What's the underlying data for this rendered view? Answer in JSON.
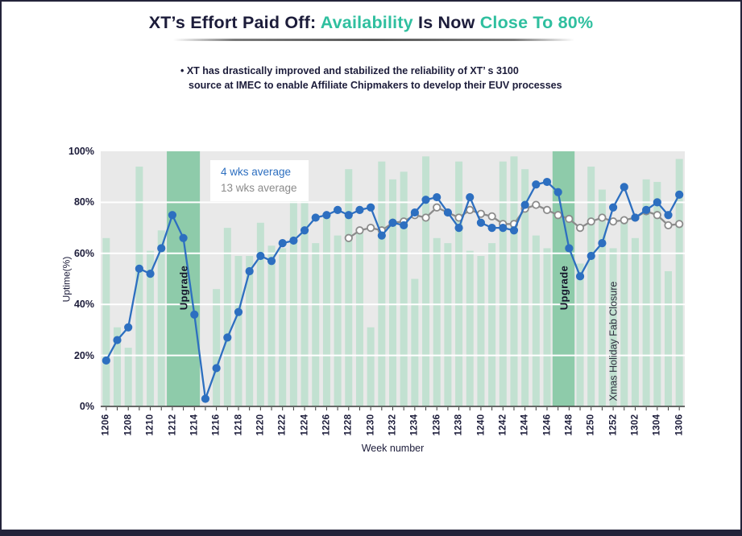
{
  "header": {
    "title_parts": [
      {
        "text": "XT’s Effort Paid Off:",
        "color": "#1c1c3a"
      },
      {
        "text": " Availability",
        "color": "#2fbf9f"
      },
      {
        "text": " Is Now ",
        "color": "#1c1c3a"
      },
      {
        "text": "Close To 80%",
        "color": "#2fbf9f"
      }
    ],
    "bullet_lines": [
      "• XT has drastically improved and stabilized the reliability of XT’ s 3100",
      "source at IMEC to enable Affiliate Chipmakers to develop their EUV processes"
    ]
  },
  "colors": {
    "bar": "#c2e1d1",
    "band": "#8ecbaa",
    "line_4wk": "#2d6fc0",
    "line_13wk": "#8b8b8b",
    "plot_bg": "#e9e9e9",
    "grid": "#ffffff",
    "axis": "#3a3a3a",
    "accent_teal": "#2fbf9f",
    "dark_text": "#1c1c3a"
  },
  "chart_data": {
    "type": "bar+line",
    "xlabel": "Week number",
    "ylabel": "Uptime(%)",
    "ylim": [
      0,
      100
    ],
    "yticks": [
      "0%",
      "20%",
      "40%",
      "60%",
      "80%",
      "100%"
    ],
    "grid": "horizontal white lines at 20/40/60/80, drawn over bars",
    "legend_position": "top-left inside plot",
    "legend": [
      "4 wks average",
      "13 wks average"
    ],
    "categories": [
      "1206",
      "1207",
      "1208",
      "1209",
      "1210",
      "1211",
      "1212",
      "1213",
      "1214",
      "1215",
      "1216",
      "1217",
      "1218",
      "1219",
      "1220",
      "1221",
      "1222",
      "1223",
      "1224",
      "1225",
      "1226",
      "1227",
      "1228",
      "1229",
      "1230",
      "1231",
      "1232",
      "1233",
      "1234",
      "1235",
      "1236",
      "1237",
      "1238",
      "1239",
      "1240",
      "1241",
      "1242",
      "1243",
      "1244",
      "1245",
      "1246",
      "1247",
      "1248",
      "1249",
      "1250",
      "1251",
      "1252",
      "1301",
      "1302",
      "1303",
      "1304",
      "1305",
      "1306"
    ],
    "x_labeled_every": 2,
    "series": [
      {
        "name": "Weekly uptime",
        "type": "bar",
        "color_key": "bar",
        "values": [
          66,
          31,
          23,
          94,
          61,
          69,
          null,
          null,
          null,
          null,
          46,
          70,
          59,
          59,
          72,
          63,
          62,
          85,
          86,
          64,
          75,
          67,
          93,
          68,
          31,
          96,
          89,
          92,
          50,
          98,
          66,
          64,
          96,
          61,
          59,
          64,
          96,
          98,
          93,
          67,
          62,
          null,
          null,
          56,
          94,
          85,
          62,
          74,
          66,
          89,
          88,
          53,
          97
        ]
      },
      {
        "name": "4 wks average",
        "type": "line",
        "color_key": "line_4wk",
        "values": [
          18,
          26,
          31,
          54,
          52,
          62,
          75,
          66,
          36,
          3,
          15,
          27,
          37,
          53,
          59,
          57,
          64,
          65,
          69,
          74,
          75,
          77,
          75,
          77,
          78,
          67,
          72,
          71,
          76,
          81,
          82,
          76,
          70,
          82,
          72,
          70,
          70,
          69,
          79,
          87,
          88,
          84,
          62,
          51,
          59,
          64,
          78,
          86,
          74,
          77,
          80,
          75,
          83
        ]
      },
      {
        "name": "13 wks average",
        "type": "line",
        "color_key": "line_13wk",
        "values": [
          null,
          null,
          null,
          null,
          null,
          null,
          null,
          null,
          null,
          null,
          null,
          null,
          null,
          null,
          null,
          null,
          null,
          null,
          null,
          null,
          null,
          null,
          66,
          69,
          70,
          69,
          72,
          72.5,
          75,
          74,
          78,
          76,
          74,
          77,
          75.5,
          74.5,
          71.5,
          71.5,
          77.5,
          79,
          77,
          75,
          73.5,
          70,
          72.5,
          74,
          72.5,
          73,
          74,
          76.5,
          75,
          71,
          71.5
        ]
      }
    ],
    "bands": [
      {
        "label": "Upgrade",
        "from_week": "1212",
        "to_week": "1214"
      },
      {
        "label": "Upgrade",
        "from_week": "1247",
        "to_week": "1248"
      }
    ],
    "annotations": [
      {
        "label": "Xmas Holiday Fab Closure",
        "week": "1252"
      }
    ]
  }
}
